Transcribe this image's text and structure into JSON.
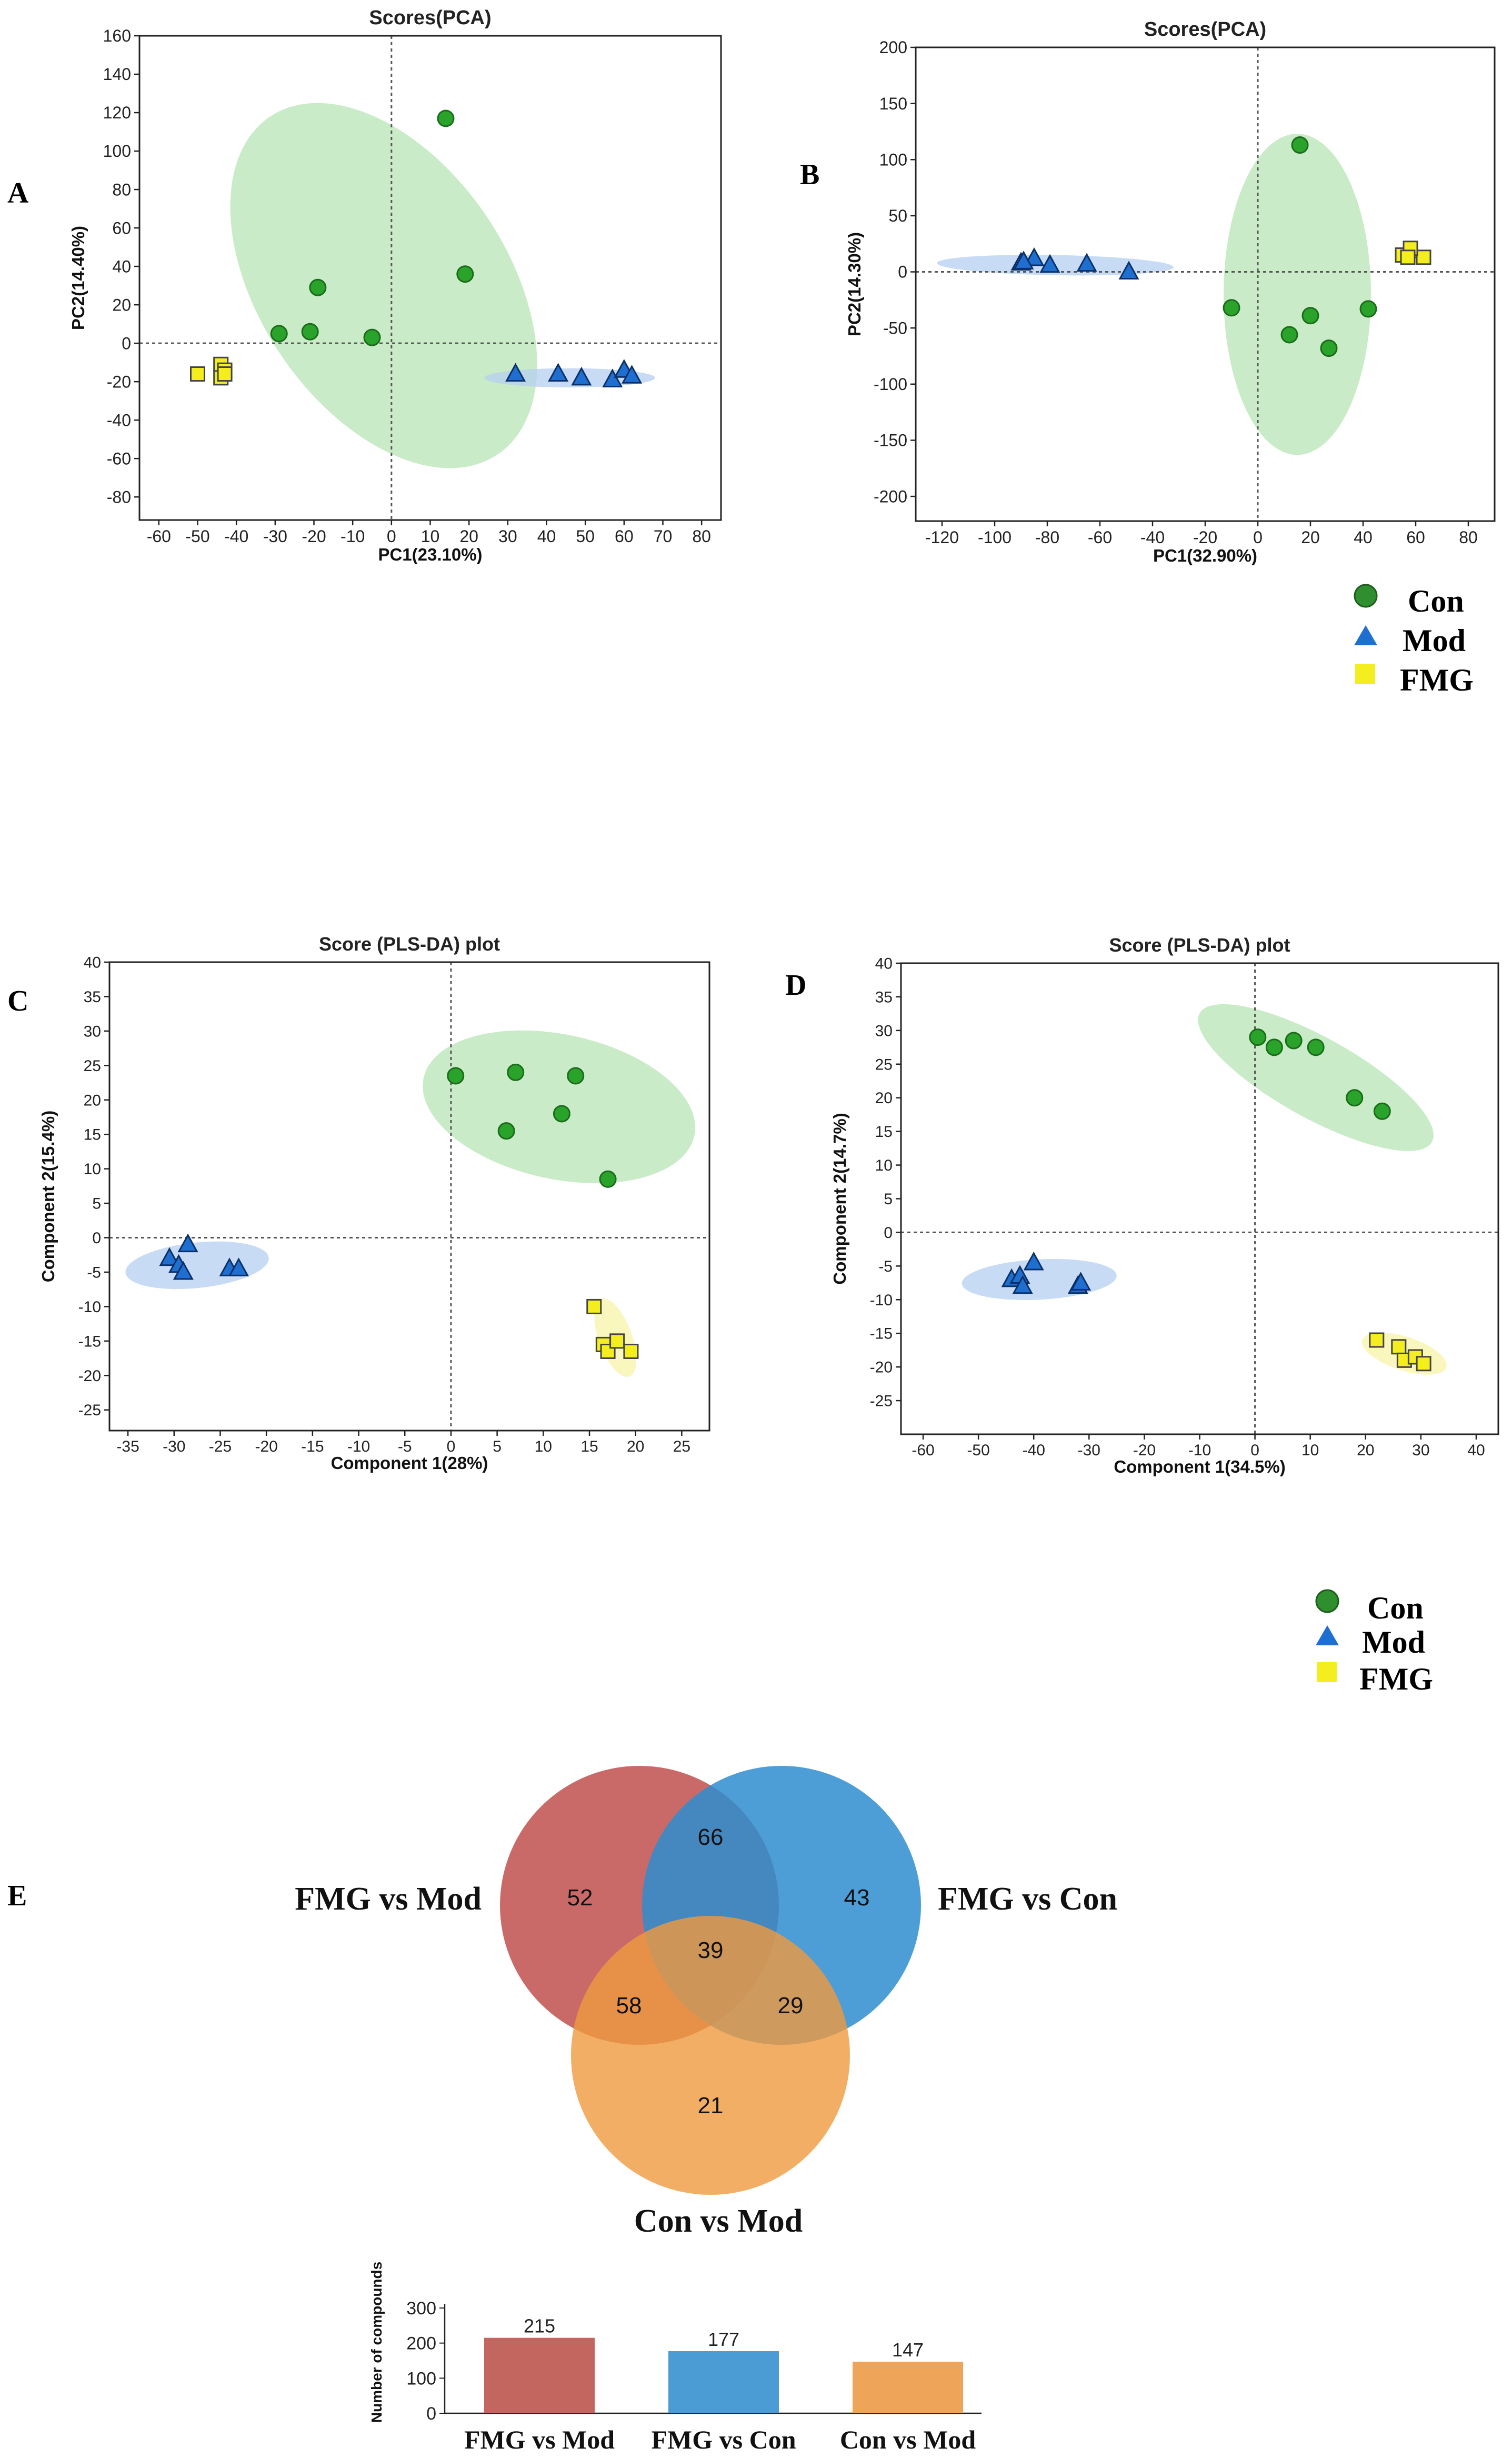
{
  "colors": {
    "con": "#2aa32a",
    "con_ellipse": "#b7e4b4",
    "mod": "#1f6fd1",
    "mod_ellipse": "#b4cff2",
    "fmg": "#f5ee1e",
    "fmg_ellipse": "#f7f3a8",
    "venn_a": "#c0504d",
    "venn_b": "#2e8ccf",
    "venn_c": "#ef9a3f",
    "bar1": "#c46660",
    "bar2": "#4b9bd4",
    "bar3": "#eea55a"
  },
  "panels": [
    "A",
    "B",
    "C",
    "D",
    "E"
  ],
  "legend": [
    {
      "label": "Con",
      "shape": "circle"
    },
    {
      "label": "Mod",
      "shape": "triangle"
    },
    {
      "label": "FMG",
      "shape": "square"
    }
  ],
  "chart_data": [
    {
      "id": "A",
      "type": "scatter",
      "title": "Scores(PCA)",
      "xlabel": "PC1(23.10%)",
      "ylabel": "PC2(14.40%)",
      "xlim": [
        -65,
        85
      ],
      "ylim": [
        -92,
        160
      ],
      "xticks": [
        -60,
        -50,
        -40,
        -30,
        -20,
        -10,
        0,
        10,
        20,
        30,
        40,
        50,
        60,
        70,
        80
      ],
      "yticks": [
        -80,
        -60,
        -40,
        -20,
        0,
        20,
        40,
        60,
        80,
        100,
        120,
        140,
        160
      ],
      "ellipses": [
        {
          "group": "con",
          "cx": -2,
          "cy": 30,
          "rx": 32,
          "ry": 106,
          "angle": -34
        },
        {
          "group": "mod",
          "cx": 46,
          "cy": -18,
          "rx": 22,
          "ry": 5,
          "angle": 0
        }
      ],
      "series": [
        {
          "name": "Con",
          "points": [
            [
              14,
              117
            ],
            [
              19,
              36
            ],
            [
              -19,
              29
            ],
            [
              -29,
              5
            ],
            [
              -21,
              6
            ],
            [
              -5,
              3
            ]
          ]
        },
        {
          "name": "Mod",
          "points": [
            [
              32,
              -16
            ],
            [
              43,
              -16
            ],
            [
              49,
              -18
            ],
            [
              57,
              -19
            ],
            [
              60,
              -14
            ],
            [
              62,
              -17
            ]
          ]
        },
        {
          "name": "FMG",
          "points": [
            [
              -50,
              -16
            ],
            [
              -44,
              -11
            ],
            [
              -43,
              -14
            ],
            [
              -44,
              -18
            ],
            [
              -43,
              -16
            ]
          ]
        }
      ]
    },
    {
      "id": "B",
      "type": "scatter",
      "title": "Scores(PCA)",
      "xlabel": "PC1(32.90%)",
      "ylabel": "PC2(14.30%)",
      "xlim": [
        -130,
        90
      ],
      "ylim": [
        -222,
        200
      ],
      "xticks": [
        -120,
        -100,
        -80,
        -60,
        -40,
        -20,
        0,
        20,
        40,
        60,
        80
      ],
      "yticks": [
        -200,
        -150,
        -100,
        -50,
        0,
        50,
        100,
        150,
        200
      ],
      "ellipses": [
        {
          "group": "con",
          "cx": 15,
          "cy": -20,
          "rx": 28,
          "ry": 143,
          "angle": 0
        },
        {
          "group": "mod",
          "cx": -77,
          "cy": 6,
          "rx": 45,
          "ry": 9,
          "angle": 1
        }
      ],
      "series": [
        {
          "name": "Con",
          "points": [
            [
              16,
              113
            ],
            [
              -10,
              -32
            ],
            [
              12,
              -56
            ],
            [
              20,
              -39
            ],
            [
              27,
              -68
            ],
            [
              42,
              -33
            ]
          ]
        },
        {
          "name": "Mod",
          "points": [
            [
              -90,
              8
            ],
            [
              -85,
              12
            ],
            [
              -79,
              6
            ],
            [
              -65,
              7
            ],
            [
              -49,
              0
            ],
            [
              -89,
              9
            ]
          ]
        },
        {
          "name": "FMG",
          "points": [
            [
              55,
              15
            ],
            [
              58,
              19
            ],
            [
              63,
              13
            ],
            [
              58,
              21
            ],
            [
              57,
              13
            ]
          ]
        }
      ]
    },
    {
      "id": "C",
      "type": "scatter",
      "title": "Score (PLS-DA) plot",
      "xlabel": "Component 1(28%)",
      "ylabel": "Component 2(15.4%)",
      "xlim": [
        -37,
        28
      ],
      "ylim": [
        -28,
        40
      ],
      "xticks": [
        -35,
        -30,
        -25,
        -20,
        -15,
        -10,
        -5,
        0,
        5,
        10,
        15,
        20,
        25
      ],
      "yticks": [
        -25,
        -20,
        -15,
        -10,
        -5,
        0,
        5,
        10,
        15,
        20,
        25,
        30,
        35,
        40
      ],
      "ellipses": [
        {
          "group": "con",
          "cx": 11.7,
          "cy": 19,
          "rx": 15,
          "ry": 10.5,
          "angle": 12
        },
        {
          "group": "mod",
          "cx": -27.5,
          "cy": -4,
          "rx": 7.8,
          "ry": 3.3,
          "angle": -6
        },
        {
          "group": "fmg",
          "cx": 17.8,
          "cy": -14.5,
          "rx": 1.8,
          "ry": 6,
          "angle": -20
        }
      ],
      "series": [
        {
          "name": "Con",
          "points": [
            [
              0.5,
              23.5
            ],
            [
              7,
              24
            ],
            [
              13.5,
              23.5
            ],
            [
              12,
              18
            ],
            [
              6,
              15.5
            ],
            [
              17,
              8.5
            ]
          ]
        },
        {
          "name": "Mod",
          "points": [
            [
              -28.5,
              -1
            ],
            [
              -30.5,
              -3
            ],
            [
              -29.5,
              -4
            ],
            [
              -29,
              -5
            ],
            [
              -24,
              -4.5
            ],
            [
              -23,
              -4.5
            ]
          ]
        },
        {
          "name": "FMG",
          "points": [
            [
              15.5,
              -10
            ],
            [
              16.5,
              -15.5
            ],
            [
              17,
              -16.5
            ],
            [
              18,
              -15
            ],
            [
              19.5,
              -16.5
            ]
          ]
        }
      ]
    },
    {
      "id": "D",
      "type": "scatter",
      "title": "Score (PLS-DA) plot",
      "xlabel": "Component 1(34.5%)",
      "ylabel": "Component 2(14.7%)",
      "xlim": [
        -64,
        44
      ],
      "ylim": [
        -30,
        40
      ],
      "xticks": [
        -60,
        -50,
        -40,
        -30,
        -20,
        -10,
        0,
        10,
        20,
        30,
        40
      ],
      "yticks": [
        -25,
        -20,
        -15,
        -10,
        -5,
        0,
        5,
        10,
        15,
        20,
        25,
        30,
        35,
        40
      ],
      "ellipses": [
        {
          "group": "con",
          "cx": 11,
          "cy": 23,
          "rx": 24,
          "ry": 6,
          "angle": 29
        },
        {
          "group": "mod",
          "cx": -39,
          "cy": -7,
          "rx": 14,
          "ry": 3,
          "angle": -3
        },
        {
          "group": "fmg",
          "cx": 27,
          "cy": -18,
          "rx": 8,
          "ry": 2.5,
          "angle": 18
        }
      ],
      "series": [
        {
          "name": "Con",
          "points": [
            [
              0.5,
              29
            ],
            [
              3.5,
              27.5
            ],
            [
              7,
              28.5
            ],
            [
              11,
              27.5
            ],
            [
              18,
              20
            ],
            [
              23,
              18
            ]
          ]
        },
        {
          "name": "Mod",
          "points": [
            [
              -44,
              -7
            ],
            [
              -42.5,
              -6.5
            ],
            [
              -42,
              -8
            ],
            [
              -40,
              -4.5
            ],
            [
              -32,
              -8
            ],
            [
              -31.5,
              -7.5
            ]
          ]
        },
        {
          "name": "FMG",
          "points": [
            [
              22,
              -16
            ],
            [
              26,
              -17
            ],
            [
              27,
              -19
            ],
            [
              29,
              -18.5
            ],
            [
              30.5,
              -19.5
            ]
          ]
        }
      ]
    },
    {
      "id": "E",
      "type": "venn",
      "sets": [
        "FMG vs Mod",
        "FMG vs Con",
        "Con vs Mod"
      ],
      "regions": {
        "only_fmg_mod": 52,
        "only_fmg_con": 43,
        "only_con_mod": 21,
        "fmg_mod_and_fmg_con": 66,
        "fmg_mod_and_con_mod": 58,
        "fmg_con_and_con_mod": 29,
        "all": 39
      }
    },
    {
      "id": "E-bar",
      "type": "bar",
      "categories": [
        "FMG vs Mod",
        "FMG vs Con",
        "Con vs Mod"
      ],
      "values": [
        215,
        177,
        147
      ],
      "ylabel": "Number of compounds",
      "ylim": [
        0,
        300
      ],
      "yticks": [
        0,
        100,
        200,
        300
      ]
    }
  ]
}
